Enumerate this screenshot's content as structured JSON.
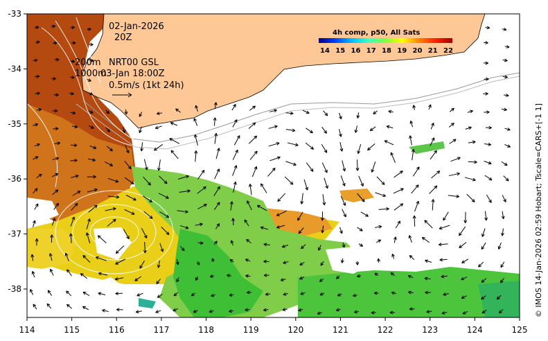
{
  "map": {
    "date": "02-Jan-2026",
    "time": "20Z",
    "line1_a": "200m",
    "line1_b": "NRT00 GSL",
    "line2_a": "1000m",
    "line2_b": "03-Jan 18:00Z",
    "scale_label": "0.5m/s (1kt 24h)",
    "side_caption": "© IMOS 14-Jan-2026 02:59 Hobart; Tscale=CARS+[-1 1]",
    "colors": {
      "land": "#fdc896",
      "hot": "#b8420c",
      "warm": "#e08a1f",
      "mid": "#f3d60f",
      "cool": "#86d04a",
      "green": "#3cc33a",
      "teal": "#29b49a"
    }
  },
  "colorbar": {
    "title": "4h comp, p50, All Sats",
    "ticks": [
      "14",
      "15",
      "16",
      "17",
      "18",
      "19",
      "20",
      "21",
      "22"
    ],
    "stops": [
      "#00007f",
      "#0040ff",
      "#00c0ff",
      "#40ffbf",
      "#80ff40",
      "#ffff00",
      "#ff8000",
      "#ff2000",
      "#a00000"
    ]
  },
  "axes": {
    "x_ticks": [
      "114",
      "115",
      "116",
      "117",
      "118",
      "119",
      "120",
      "121",
      "122",
      "123",
      "124",
      "125"
    ],
    "y_ticks": [
      "-33",
      "-34",
      "-35",
      "-36",
      "-37",
      "-38"
    ]
  }
}
